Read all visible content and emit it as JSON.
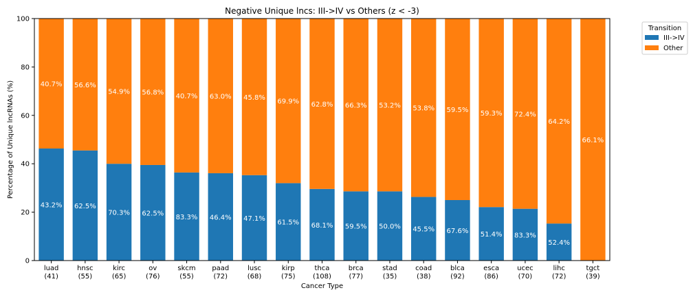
{
  "chart_data": {
    "type": "bar",
    "stacked": true,
    "title": "Negative Unique lncs: III->IV vs Others (z < -3)",
    "xlabel": "Cancer Type",
    "ylabel": "Percentage of Unique lncRNAs (%)",
    "ylim": [
      0,
      100
    ],
    "yticks": [
      0,
      20,
      40,
      60,
      80,
      100
    ],
    "grid": false,
    "legend": {
      "title": "Transition",
      "placement": "outside top-right"
    },
    "categories": [
      "luad",
      "hnsc",
      "kirc",
      "ov",
      "skcm",
      "paad",
      "lusc",
      "kirp",
      "thca",
      "brca",
      "stad",
      "coad",
      "blca",
      "esca",
      "ucec",
      "lihc",
      "tgct"
    ],
    "counts": [
      "(41)",
      "(55)",
      "(65)",
      "(76)",
      "(55)",
      "(72)",
      "(68)",
      "(75)",
      "(108)",
      "(77)",
      "(35)",
      "(38)",
      "(92)",
      "(86)",
      "(70)",
      "(72)",
      "(39)"
    ],
    "series": [
      {
        "name": "III->IV",
        "color": "#1f77b4",
        "values": [
          46.3,
          45.5,
          40.0,
          39.5,
          36.4,
          36.1,
          35.3,
          32.0,
          29.6,
          28.6,
          28.6,
          26.3,
          25.0,
          22.1,
          21.4,
          15.3,
          0
        ],
        "labels": [
          "43.2%",
          "62.5%",
          "70.3%",
          "62.5%",
          "83.3%",
          "46.4%",
          "47.1%",
          "61.5%",
          "68.1%",
          "59.5%",
          "50.0%",
          "45.5%",
          "67.6%",
          "51.4%",
          "83.3%",
          "52.4%",
          ""
        ]
      },
      {
        "name": "Other",
        "color": "#ff7f0e",
        "values": [
          53.7,
          54.5,
          60.0,
          60.5,
          63.6,
          63.9,
          64.7,
          68.0,
          70.4,
          71.4,
          71.4,
          73.7,
          75.0,
          77.9,
          78.6,
          84.7,
          100
        ],
        "labels": [
          "40.7%",
          "56.6%",
          "54.9%",
          "56.8%",
          "40.7%",
          "63.0%",
          "45.8%",
          "69.9%",
          "62.8%",
          "66.3%",
          "53.2%",
          "53.8%",
          "59.5%",
          "59.3%",
          "72.4%",
          "64.2%",
          "66.1%"
        ]
      }
    ]
  }
}
